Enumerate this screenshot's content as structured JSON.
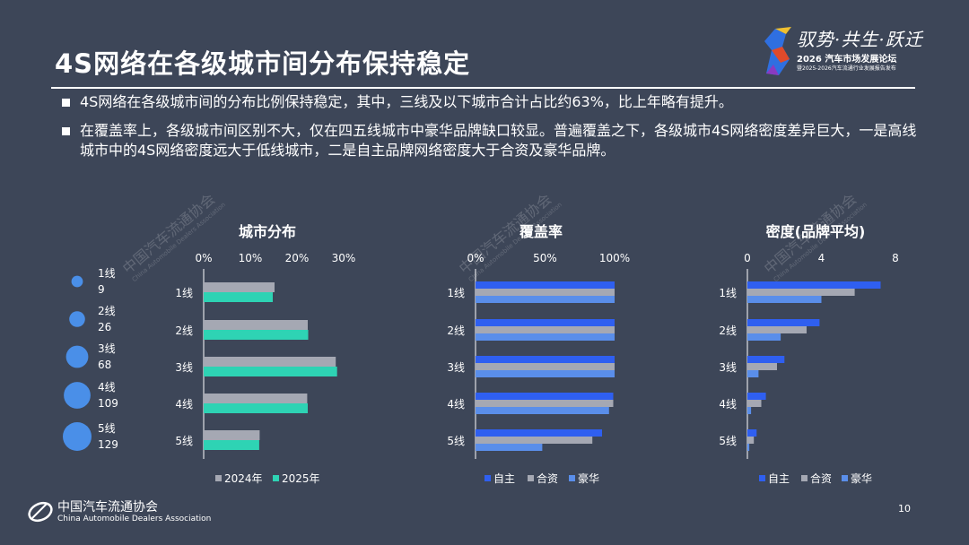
{
  "page": {
    "title": "4S网络在各级城市间分布保持稳定",
    "bullets": [
      "4S网络在各级城市间的分布比例保持稳定，其中，三线及以下城市合计占比约63%，比上年略有提升。",
      "在覆盖率上，各级城市间区别不大，仅在四五线城市中豪华品牌缺口较显。普遍覆盖之下，各级城市4S网络密度差异巨大，一是高线城市中的4S网络密度远大于低线城市，二是自主品牌网络密度大于合资及豪华品牌。"
    ],
    "page_number": "10"
  },
  "header_logo": {
    "slogan": "驭势·共生·跃迁",
    "year_line": "2026 汽车市场发展论坛",
    "sub_line": "暨2025-2026汽车流通行业发展报告发布"
  },
  "footer": {
    "org_cn": "中国汽车流通协会",
    "org_en": "China Automobile Dealers Association"
  },
  "watermark": {
    "cn": "中国汽车流通协会",
    "en": "China Automobile Dealers Association"
  },
  "colors": {
    "background": "#3d4658",
    "series_2024": "#a5a8b3",
    "series_2025": "#2ed3b4",
    "own": "#2f5ff0",
    "jv": "#a5a8b3",
    "lux": "#5a8eea",
    "bubble": "#4a8fe8"
  },
  "chart_data": [
    {
      "type": "bubble",
      "categories": [
        "1线",
        "2线",
        "3线",
        "4线",
        "5线"
      ],
      "values": [
        9,
        26,
        68,
        109,
        129
      ]
    },
    {
      "type": "bar",
      "orientation": "horizontal",
      "title": "城市分布",
      "categories": [
        "1线",
        "2线",
        "3线",
        "4线",
        "5线"
      ],
      "xlim": [
        0,
        30
      ],
      "ticks": [
        "0%",
        "10%",
        "20%",
        "30%"
      ],
      "series": [
        {
          "name": "2024年",
          "values": [
            15.2,
            22.3,
            28.3,
            22.2,
            12.0
          ]
        },
        {
          "name": "2025年",
          "values": [
            14.8,
            22.4,
            28.6,
            22.3,
            11.9
          ]
        }
      ],
      "legend": "bottom"
    },
    {
      "type": "bar",
      "orientation": "horizontal",
      "title": "覆盖率",
      "categories": [
        "1线",
        "2线",
        "3线",
        "4线",
        "5线"
      ],
      "xlim": [
        0,
        100
      ],
      "ticks": [
        "0%",
        "50%",
        "100%"
      ],
      "series": [
        {
          "name": "自主",
          "values": [
            100,
            100,
            100,
            99,
            91
          ]
        },
        {
          "name": "合资",
          "values": [
            100,
            100,
            100,
            99,
            84
          ]
        },
        {
          "name": "豪华",
          "values": [
            100,
            100,
            100,
            96,
            48
          ]
        }
      ],
      "legend": "bottom"
    },
    {
      "type": "bar",
      "orientation": "horizontal",
      "title": "密度(品牌平均)",
      "categories": [
        "1线",
        "2线",
        "3线",
        "4线",
        "5线"
      ],
      "xlim": [
        0,
        8
      ],
      "ticks": [
        "0",
        "4",
        "8"
      ],
      "series": [
        {
          "name": "自主",
          "values": [
            7.2,
            3.9,
            2.0,
            1.0,
            0.5
          ]
        },
        {
          "name": "合资",
          "values": [
            5.8,
            3.2,
            1.6,
            0.75,
            0.35
          ]
        },
        {
          "name": "豪华",
          "values": [
            4.0,
            1.8,
            0.6,
            0.2,
            0.1
          ]
        }
      ],
      "legend": "bottom"
    }
  ]
}
